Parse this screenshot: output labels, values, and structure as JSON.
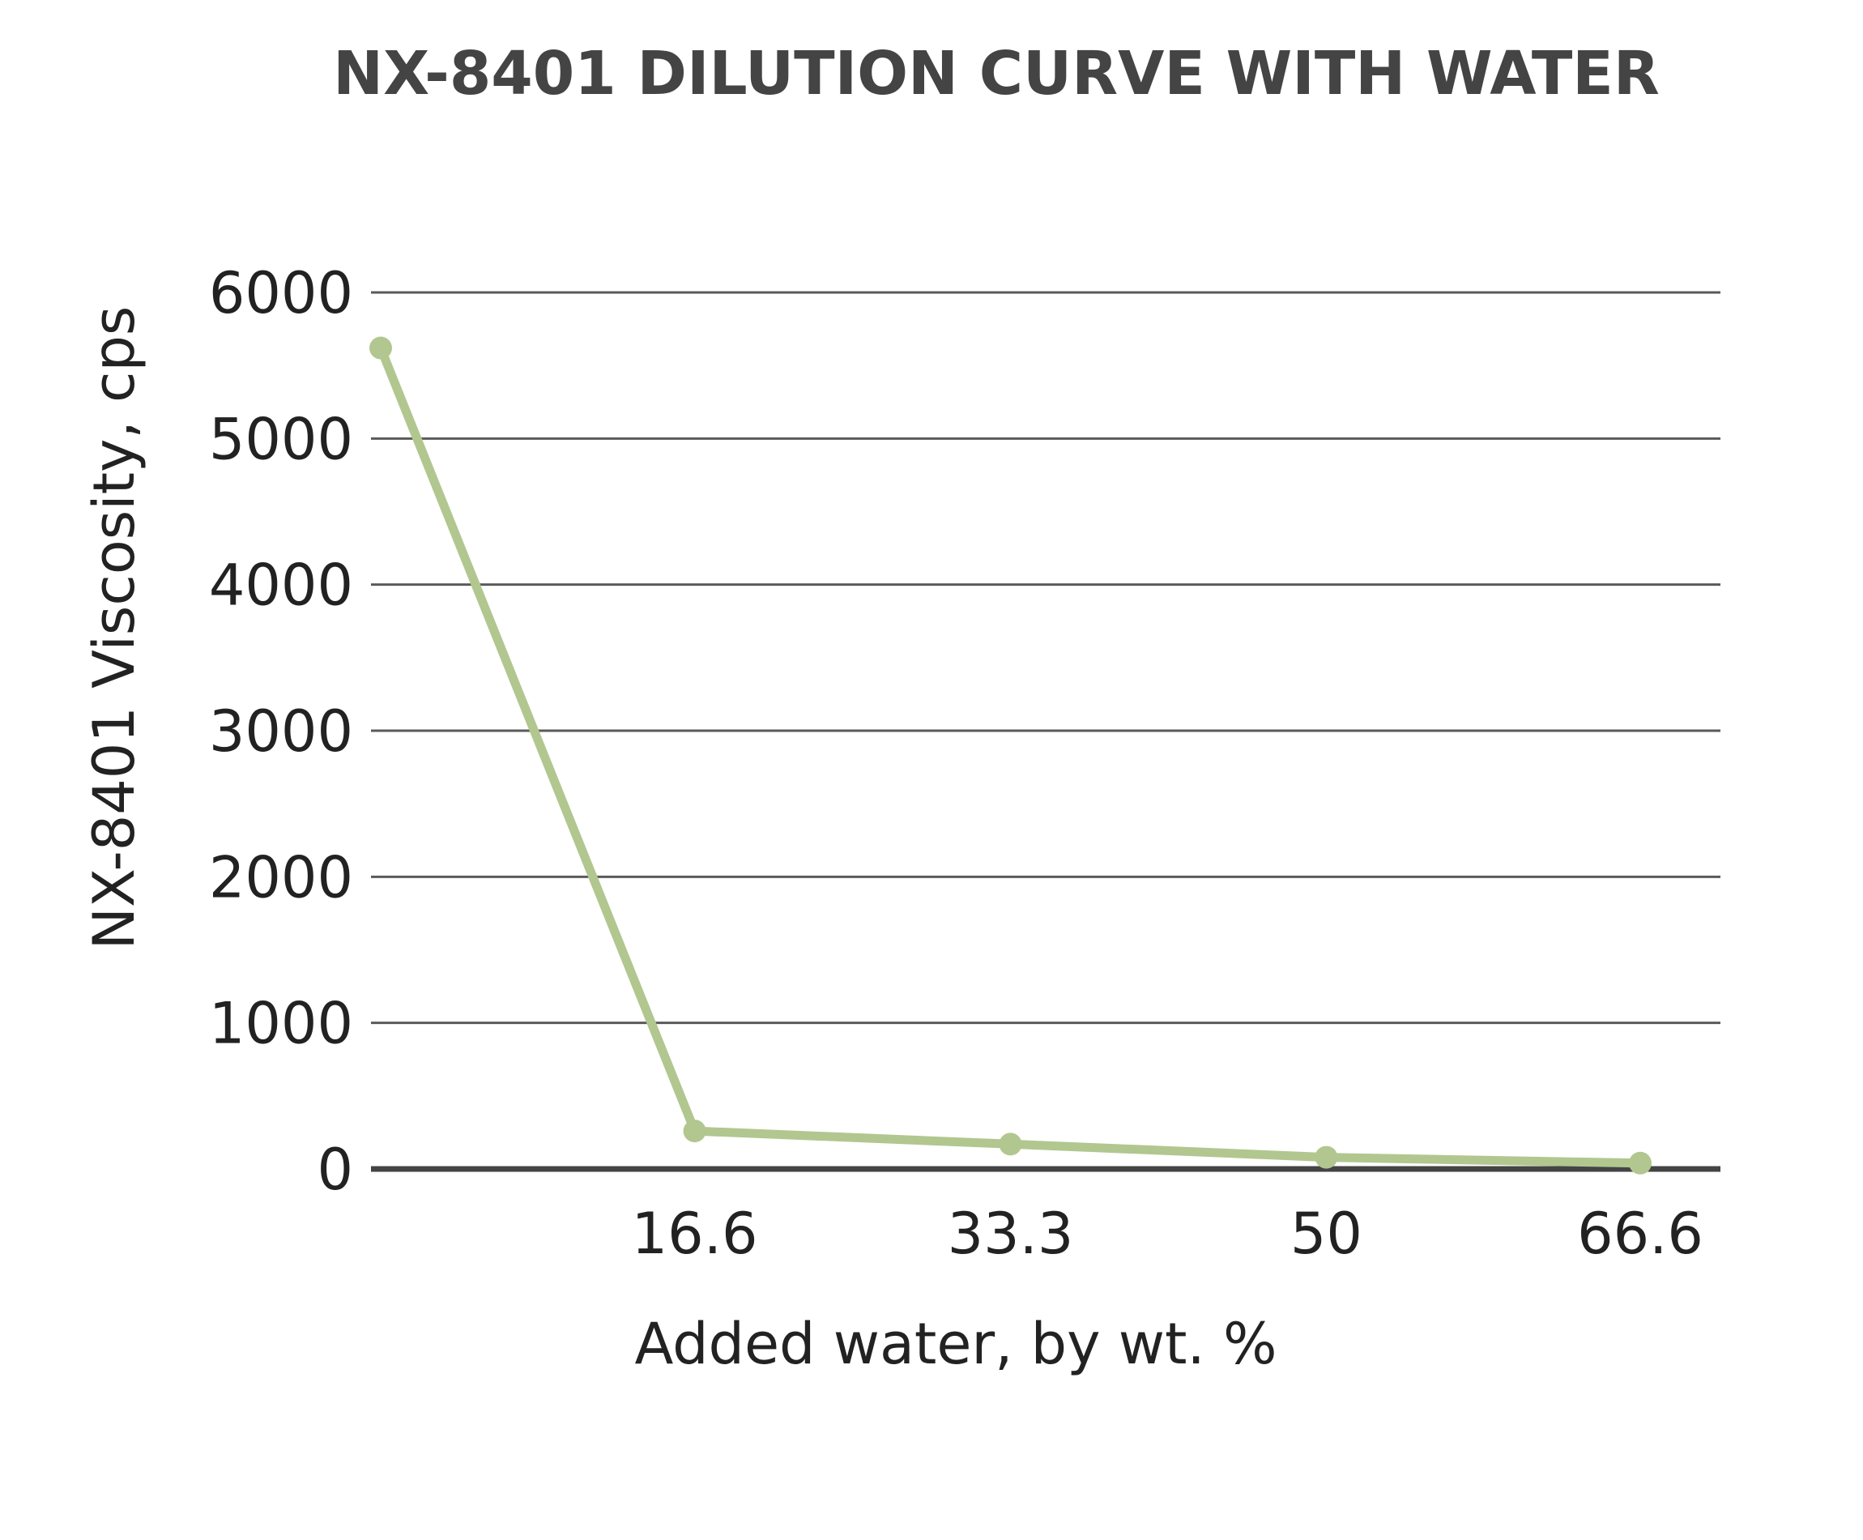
{
  "chart_data": {
    "type": "line",
    "title": "NX-8401 DILUTION CURVE WITH WATER",
    "xlabel": "Added water, by wt. %",
    "ylabel": "NX-8401 Viscosity, cps",
    "x": [
      0,
      16.6,
      33.3,
      50,
      66.6
    ],
    "x_tick_labels": [
      "16.6",
      "33.3",
      "50",
      "66.6"
    ],
    "y_ticks": [
      0,
      1000,
      2000,
      3000,
      4000,
      5000,
      6000
    ],
    "ylim": [
      0,
      6000
    ],
    "grid": true,
    "legend": "none",
    "series": [
      {
        "values": [
          5620,
          260,
          170,
          80,
          40
        ],
        "color": "#b1c78f"
      }
    ]
  }
}
